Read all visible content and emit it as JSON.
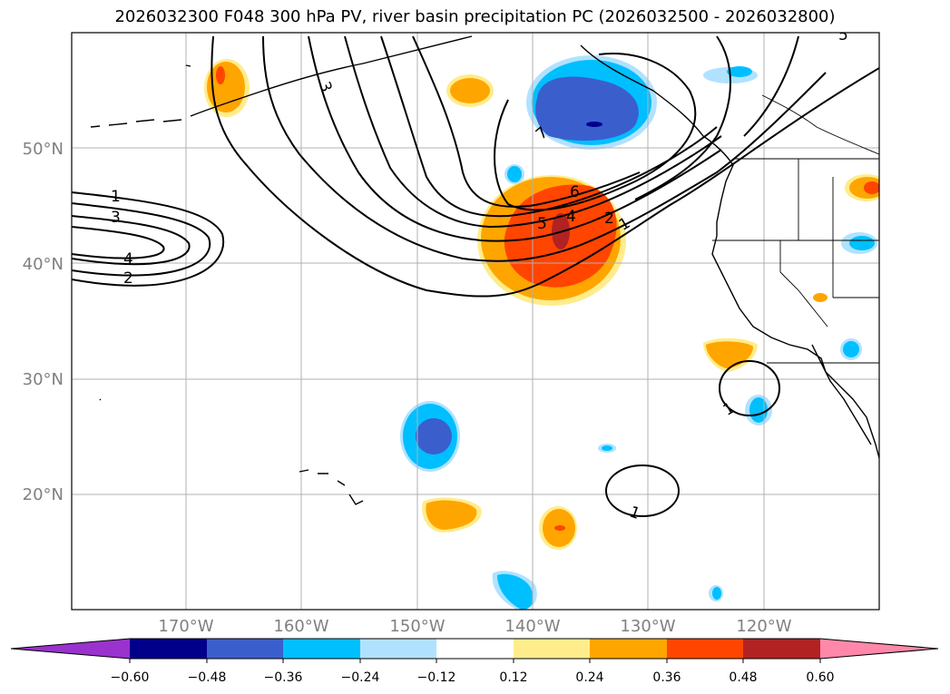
{
  "title": "2026032300 F048 300 hPa PV, river basin precipitation PC (2026032500 - 2026032800)",
  "map": {
    "lat_labels": [
      "50°N",
      "40°N",
      "30°N",
      "20°N"
    ],
    "lon_labels": [
      "170°W",
      "160°W",
      "150°W",
      "140°W",
      "130°W",
      "120°W"
    ],
    "contour_labels": [
      "1",
      "3",
      "4",
      "2",
      "3",
      "7",
      "6",
      "5",
      "4",
      "2",
      "1",
      "1",
      "1",
      "5"
    ]
  },
  "colorbar": {
    "ticks": [
      "−0.60",
      "−0.48",
      "−0.36",
      "−0.24",
      "−0.12",
      "0.12",
      "0.24",
      "0.36",
      "0.48",
      "0.60"
    ],
    "colors": [
      "#9a32cd",
      "#00008b",
      "#3a5fcd",
      "#00bfff",
      "#b0e2ff",
      "#ffffff",
      "#ffec8b",
      "#ffa500",
      "#ff4500",
      "#b22222",
      "#ff88aa"
    ]
  }
}
